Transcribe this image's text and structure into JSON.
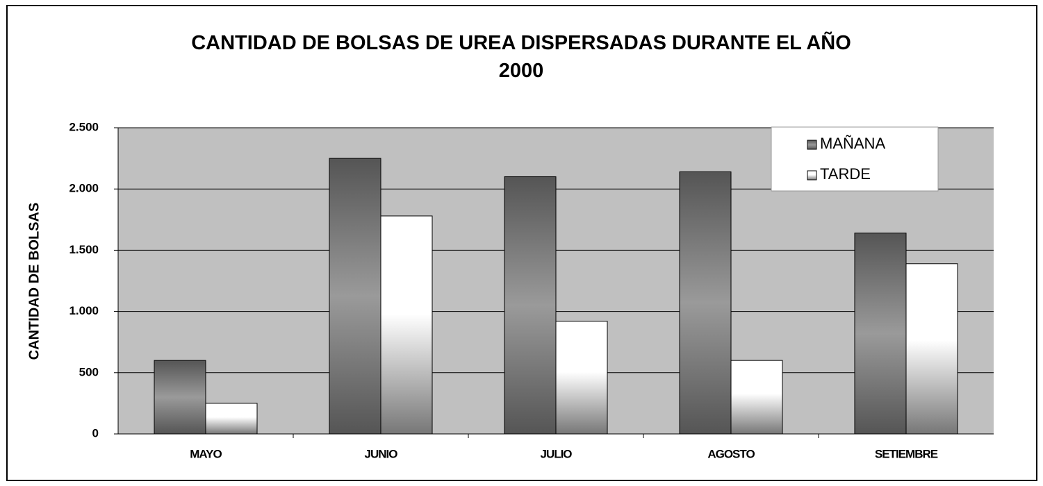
{
  "chart_data": {
    "type": "bar",
    "title": "CANTIDAD DE BOLSAS DE UREA DISPERSADAS DURANTE EL AÑO 2000",
    "y_label": "CANTIDAD DE BOLSAS",
    "categories": [
      "MAYO",
      "JUNIO",
      "JULIO",
      "AGOSTO",
      "SETIEMBRE"
    ],
    "series": [
      {
        "name": "MAÑANA",
        "color": "#555555",
        "values": [
          600,
          2250,
          2100,
          2140,
          1640
        ]
      },
      {
        "name": "TARDE",
        "color": "#ffffff",
        "values": [
          250,
          1780,
          920,
          600,
          1390
        ]
      }
    ],
    "ylim": [
      0,
      2500
    ],
    "yticks": [
      0,
      500,
      {
        "value": 1000,
        "label": "1.000"
      },
      {
        "value": 1500,
        "label": "1.500"
      },
      {
        "value": 2000,
        "label": "2.000"
      },
      {
        "value": 2500,
        "label": "2.500"
      }
    ],
    "grid": true,
    "legend": "top right"
  }
}
